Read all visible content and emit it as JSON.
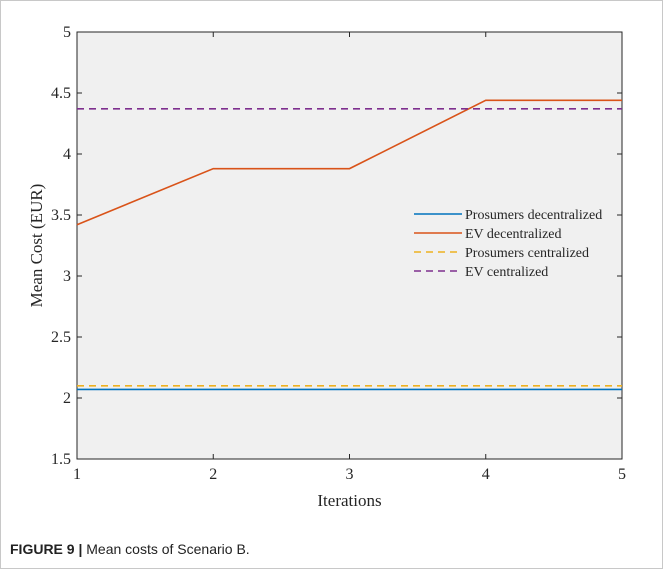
{
  "chart_data": {
    "type": "line",
    "xlabel": "Iterations",
    "ylabel": "Mean Cost (EUR)",
    "xlim": [
      1,
      5
    ],
    "ylim": [
      1.5,
      5
    ],
    "x_ticks": [
      "1",
      "2",
      "3",
      "4",
      "5"
    ],
    "y_ticks": [
      "1.5",
      "2",
      "2.5",
      "3",
      "3.5",
      "4",
      "4.5",
      "5"
    ],
    "grid": false,
    "legend_position": "center-right",
    "x": [
      1,
      2,
      3,
      4,
      5
    ],
    "series": [
      {
        "name": "Prosumers decentralized",
        "values": [
          2.07,
          2.07,
          2.07,
          2.07,
          2.07
        ],
        "color": "#0072BD",
        "style": "solid"
      },
      {
        "name": "EV decentralized",
        "values": [
          3.42,
          3.88,
          3.88,
          4.44,
          4.44
        ],
        "color": "#D95319",
        "style": "solid"
      },
      {
        "name": "Prosumers centralized",
        "values": [
          2.1,
          2.1,
          2.1,
          2.1,
          2.1
        ],
        "color": "#EDB120",
        "style": "dashed"
      },
      {
        "name": "EV  centralized",
        "values": [
          4.37,
          4.37,
          4.37,
          4.37,
          4.37
        ],
        "color": "#7E2F8E",
        "style": "dashed"
      }
    ]
  },
  "caption": {
    "label": "FIGURE 9 |",
    "text": " Mean costs of Scenario B."
  }
}
